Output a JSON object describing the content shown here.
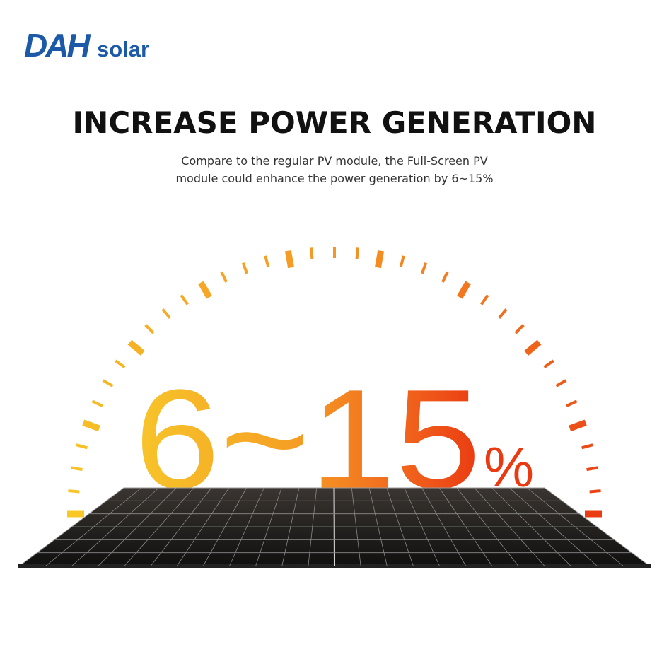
{
  "logo": {
    "mark": "DAH",
    "text": "solar"
  },
  "header": {
    "title": "INCREASE POWER GENERATION",
    "subtitle": [
      "Compare to the regular PV module, the Full-Screen PV",
      "module could enhance the power generation by 6~15%"
    ]
  },
  "highlight": {
    "range": "6~15",
    "unit": "%"
  }
}
